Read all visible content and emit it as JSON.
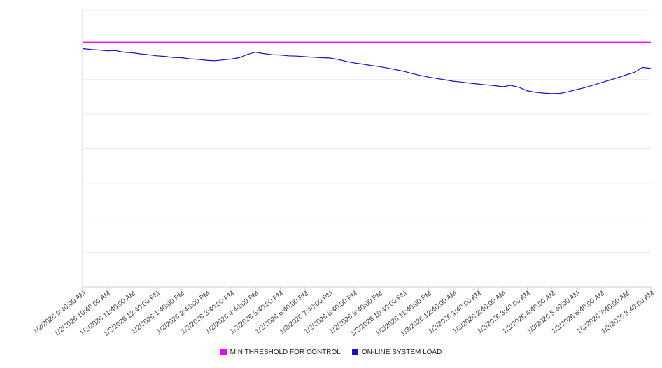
{
  "chart_data": {
    "type": "line",
    "title": "",
    "xlabel": "",
    "ylabel": "",
    "legend_position": "bottom",
    "y_axis": {
      "labels_visible": false,
      "ylim": [
        0,
        100
      ],
      "gridlines": 8,
      "grid_color": "#ececec",
      "axis_color": "#cfcfcf"
    },
    "x_tick_labels": [
      "1/2/2026 9:40:00 AM",
      "1/2/2026 10:40:00 AM",
      "1/2/2026 11:40:00 AM",
      "1/2/2026 12:40:00 PM",
      "1/2/2026 1:40:00 PM",
      "1/2/2026 2:40:00 PM",
      "1/2/2026 3:40:00 PM",
      "1/2/2026 4:40:00 PM",
      "1/2/2026 5:40:00 PM",
      "1/2/2026 6:40:00 PM",
      "1/2/2026 7:40:00 PM",
      "1/2/2026 8:40:00 PM",
      "1/2/2026 9:40:00 PM",
      "1/2/2026 10:40:00 PM",
      "1/2/2026 11:40:00 PM",
      "1/3/2026 12:40:00 AM",
      "1/3/2026 1:40:00 AM",
      "1/3/2026 2:40:00 AM",
      "1/3/2026 3:40:00 AM",
      "1/3/2026 4:40:00 AM",
      "1/3/2026 5:40:00 AM",
      "1/3/2026 6:40:00 AM",
      "1/3/2026 7:40:00 AM",
      "1/3/2026 8:40:00 AM"
    ],
    "series": [
      {
        "name": "MIN THRESHOLD FOR CONTROL",
        "color": "#ff00ff",
        "line_width": 1.6,
        "values": [
          88.5,
          88.5
        ]
      },
      {
        "name": "ON-LINE SYSTEM LOAD",
        "color": "#1414cc",
        "line_width": 1.2,
        "values": [
          86.2,
          85.9,
          85.7,
          85.4,
          85.5,
          84.9,
          84.7,
          84.3,
          84.0,
          83.6,
          83.4,
          83.0,
          82.9,
          82.5,
          82.3,
          82.0,
          81.8,
          82.1,
          82.4,
          82.9,
          84.1,
          84.9,
          84.4,
          84.0,
          83.9,
          83.6,
          83.5,
          83.3,
          83.1,
          82.9,
          82.8,
          82.3,
          81.6,
          81.0,
          80.6,
          80.1,
          79.7,
          79.2,
          78.6,
          78.0,
          77.2,
          76.5,
          75.9,
          75.4,
          74.9,
          74.4,
          74.1,
          73.7,
          73.4,
          73.1,
          72.8,
          72.4,
          72.9,
          72.2,
          70.9,
          70.4,
          70.1,
          69.9,
          70.0,
          70.6,
          71.4,
          72.1,
          73.0,
          73.9,
          74.8,
          75.7,
          76.7,
          77.6,
          79.4,
          79.0
        ]
      }
    ]
  },
  "legend": {
    "items": [
      {
        "label": "MIN THRESHOLD FOR CONTROL",
        "color": "#ff00ff"
      },
      {
        "label": "ON-LINE SYSTEM LOAD",
        "color": "#1414cc"
      }
    ]
  }
}
